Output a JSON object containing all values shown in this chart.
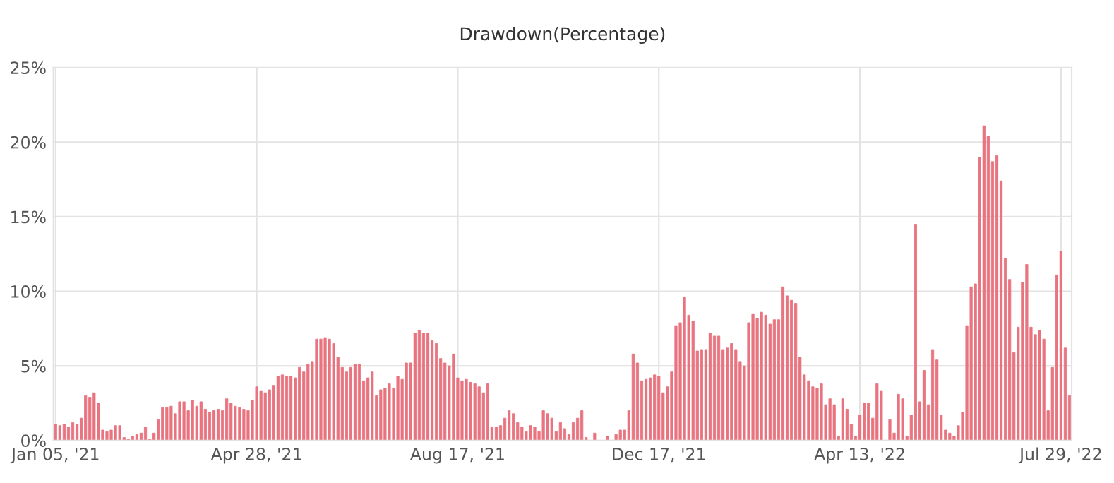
{
  "chart_data": {
    "type": "bar",
    "title": "Drawdown(Percentage)",
    "categories": [
      "Jan 05, '21",
      null,
      null,
      null,
      null,
      null,
      null,
      null,
      null,
      null,
      null,
      null,
      null,
      null,
      null,
      null,
      null,
      null,
      null,
      null,
      null,
      null,
      null,
      null,
      null,
      null,
      null,
      null,
      null,
      null,
      null,
      null,
      null,
      null,
      null,
      null,
      null,
      null,
      null,
      null,
      null,
      null,
      null,
      null,
      null,
      null,
      null,
      "Apr 28, '21",
      null,
      null,
      null,
      null,
      null,
      null,
      null,
      null,
      null,
      null,
      null,
      null,
      null,
      null,
      null,
      null,
      null,
      null,
      null,
      null,
      null,
      null,
      null,
      null,
      null,
      null,
      null,
      null,
      null,
      null,
      null,
      null,
      null,
      null,
      null,
      null,
      null,
      null,
      null,
      null,
      null,
      null,
      null,
      null,
      null,
      null,
      "Aug 17, '21",
      null,
      null,
      null,
      null,
      null,
      null,
      null,
      null,
      null,
      null,
      null,
      null,
      null,
      null,
      null,
      null,
      null,
      null,
      null,
      null,
      null,
      null,
      null,
      null,
      null,
      null,
      null,
      null,
      null,
      null,
      null,
      null,
      null,
      null,
      null,
      null,
      null,
      null,
      null,
      null,
      null,
      null,
      null,
      null,
      null,
      null,
      "Dec 17, '21",
      null,
      null,
      null,
      null,
      null,
      null,
      null,
      null,
      null,
      null,
      null,
      null,
      null,
      null,
      null,
      null,
      null,
      null,
      null,
      null,
      null,
      null,
      null,
      null,
      null,
      null,
      null,
      null,
      null,
      null,
      null,
      null,
      null,
      null,
      null,
      null,
      null,
      null,
      null,
      null,
      null,
      null,
      null,
      null,
      null,
      null,
      "Apr 13, '22",
      null,
      null,
      null,
      null,
      null,
      null,
      null,
      null,
      null,
      null,
      null,
      null,
      null,
      null,
      null,
      null,
      null,
      null,
      null,
      null,
      null,
      null,
      null,
      null,
      null,
      null,
      null,
      null,
      null,
      null,
      null,
      null,
      null,
      null,
      null,
      null,
      null,
      null,
      null,
      null,
      null,
      null,
      null,
      null,
      null,
      null,
      "Jul 29, '22",
      null,
      null
    ],
    "values": [
      1.1,
      1.0,
      1.1,
      0.9,
      1.2,
      1.1,
      1.5,
      3.0,
      2.9,
      3.2,
      2.5,
      0.7,
      0.6,
      0.7,
      1.0,
      1.0,
      0.2,
      0.1,
      0.3,
      0.4,
      0.5,
      0.9,
      0.1,
      0.5,
      1.4,
      2.2,
      2.2,
      2.3,
      1.8,
      2.6,
      2.6,
      2.0,
      2.7,
      2.3,
      2.6,
      2.1,
      1.9,
      2.0,
      2.1,
      2.0,
      2.8,
      2.5,
      2.3,
      2.2,
      2.1,
      2.0,
      2.7,
      3.6,
      3.3,
      3.2,
      3.4,
      3.7,
      4.3,
      4.4,
      4.3,
      4.3,
      4.2,
      4.9,
      4.6,
      5.1,
      5.3,
      6.8,
      6.8,
      6.9,
      6.8,
      6.5,
      5.6,
      4.9,
      4.6,
      4.9,
      5.1,
      5.1,
      4.0,
      4.2,
      4.6,
      3.0,
      3.4,
      3.5,
      3.8,
      3.5,
      4.3,
      4.1,
      5.2,
      5.2,
      7.2,
      7.4,
      7.2,
      7.2,
      6.7,
      6.5,
      5.5,
      5.2,
      5.0,
      5.8,
      4.2,
      4.0,
      4.1,
      3.9,
      3.8,
      3.6,
      3.2,
      3.8,
      0.9,
      0.9,
      1.0,
      1.5,
      2.0,
      1.8,
      1.2,
      0.9,
      0.6,
      1.0,
      0.9,
      0.6,
      2.0,
      1.8,
      1.5,
      0.6,
      1.2,
      0.8,
      0.4,
      1.2,
      1.5,
      2.0,
      0.2,
      0.0,
      0.5,
      0.0,
      0.0,
      0.3,
      0.0,
      0.4,
      0.7,
      0.7,
      2.0,
      5.8,
      5.2,
      4.0,
      4.1,
      4.2,
      4.4,
      4.3,
      3.2,
      3.6,
      4.6,
      7.7,
      7.9,
      9.6,
      8.4,
      8.0,
      6.0,
      6.1,
      6.1,
      7.2,
      7.0,
      7.0,
      6.1,
      6.2,
      6.5,
      6.1,
      5.3,
      5.0,
      7.9,
      8.5,
      8.2,
      8.6,
      8.4,
      7.8,
      8.1,
      8.1,
      10.3,
      9.7,
      9.4,
      9.2,
      5.6,
      4.4,
      4.0,
      3.6,
      3.5,
      3.8,
      2.4,
      2.8,
      2.4,
      0.3,
      2.8,
      2.1,
      1.1,
      0.3,
      1.7,
      2.5,
      2.5,
      1.5,
      3.8,
      3.3,
      0.0,
      1.4,
      0.5,
      3.1,
      2.8,
      0.3,
      1.7,
      14.5,
      2.6,
      4.7,
      2.4,
      6.1,
      5.4,
      1.7,
      0.7,
      0.5,
      0.3,
      1.0,
      1.9,
      7.7,
      10.3,
      10.5,
      19.0,
      21.1,
      20.4,
      18.7,
      19.1,
      17.4,
      12.2,
      10.8,
      5.9,
      7.6,
      10.6,
      11.8,
      7.6,
      7.1,
      7.4,
      6.8,
      2.0,
      4.9,
      11.1,
      12.7,
      6.2,
      3.0
    ],
    "color": "#e8747f",
    "ylim": [
      0,
      25
    ],
    "yticks": [
      {
        "value": 0,
        "label": "0%"
      },
      {
        "value": 5,
        "label": "5%"
      },
      {
        "value": 10,
        "label": "10%"
      },
      {
        "value": 15,
        "label": "15%"
      },
      {
        "value": 20,
        "label": "20%"
      },
      {
        "value": 25,
        "label": "25%"
      }
    ],
    "grid": true
  }
}
